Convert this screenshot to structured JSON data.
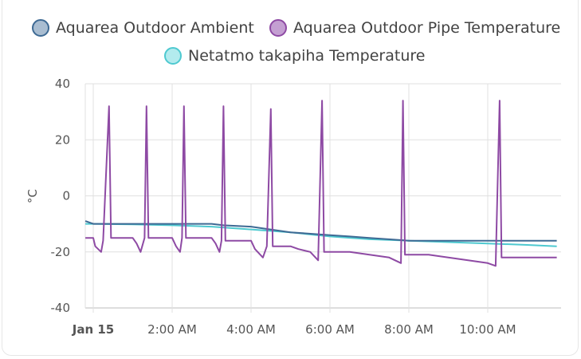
{
  "chart_data": {
    "type": "line",
    "ylabel": "°C",
    "ylim": [
      -40,
      40
    ],
    "yticks": [
      40,
      20,
      0,
      -20,
      -40
    ],
    "x_start_hour": 0,
    "x_end_hour": 11.75,
    "xticks": [
      {
        "label": "Jan 15",
        "hour": 0,
        "bold": true
      },
      {
        "label": "2:00 AM",
        "hour": 2,
        "bold": false
      },
      {
        "label": "4:00 AM",
        "hour": 4,
        "bold": false
      },
      {
        "label": "6:00 AM",
        "hour": 6,
        "bold": false
      },
      {
        "label": "8:00 AM",
        "hour": 8,
        "bold": false
      },
      {
        "label": "10:00 AM",
        "hour": 10,
        "bold": false
      }
    ],
    "series": [
      {
        "name": "Aquarea Outdoor Ambient",
        "color": "#3e6a94",
        "fill": "#a9bdd1",
        "points": [
          [
            -0.2,
            -9
          ],
          [
            0,
            -10
          ],
          [
            1,
            -10
          ],
          [
            2,
            -10
          ],
          [
            3,
            -10
          ],
          [
            3.3,
            -10.5
          ],
          [
            4,
            -11
          ],
          [
            5,
            -13
          ],
          [
            6,
            -14
          ],
          [
            6.5,
            -14.5
          ],
          [
            7,
            -15
          ],
          [
            8,
            -16
          ],
          [
            9,
            -16
          ],
          [
            10,
            -16
          ],
          [
            11,
            -16
          ],
          [
            11.75,
            -16
          ]
        ]
      },
      {
        "name": "Aquarea Outdoor Pipe Temperature",
        "color": "#8e4aa4",
        "fill": "#c49fd2",
        "points": [
          [
            -0.2,
            -15
          ],
          [
            0,
            -15
          ],
          [
            0.05,
            -18
          ],
          [
            0.2,
            -20
          ],
          [
            0.25,
            -16
          ],
          [
            0.4,
            32
          ],
          [
            0.45,
            -15
          ],
          [
            0.6,
            -15
          ],
          [
            1,
            -15
          ],
          [
            1.1,
            -17
          ],
          [
            1.2,
            -20
          ],
          [
            1.3,
            -15
          ],
          [
            1.35,
            32
          ],
          [
            1.4,
            -15
          ],
          [
            2,
            -15
          ],
          [
            2.1,
            -18
          ],
          [
            2.2,
            -20
          ],
          [
            2.25,
            -15
          ],
          [
            2.3,
            32
          ],
          [
            2.35,
            -15
          ],
          [
            3,
            -15
          ],
          [
            3.1,
            -17
          ],
          [
            3.2,
            -20
          ],
          [
            3.25,
            -16
          ],
          [
            3.3,
            32
          ],
          [
            3.35,
            -16
          ],
          [
            4,
            -16
          ],
          [
            4.1,
            -19
          ],
          [
            4.3,
            -22
          ],
          [
            4.4,
            -18
          ],
          [
            4.5,
            31
          ],
          [
            4.55,
            -18
          ],
          [
            5,
            -18
          ],
          [
            5.2,
            -19
          ],
          [
            5.5,
            -20
          ],
          [
            5.7,
            -23
          ],
          [
            5.8,
            34
          ],
          [
            5.85,
            -20
          ],
          [
            6.5,
            -20
          ],
          [
            7,
            -21
          ],
          [
            7.5,
            -22
          ],
          [
            7.8,
            -24
          ],
          [
            7.85,
            34
          ],
          [
            7.9,
            -21
          ],
          [
            8.5,
            -21
          ],
          [
            9,
            -22
          ],
          [
            9.5,
            -23
          ],
          [
            10,
            -24
          ],
          [
            10.2,
            -25
          ],
          [
            10.3,
            34
          ],
          [
            10.35,
            -22
          ],
          [
            11,
            -22
          ],
          [
            11.75,
            -22
          ]
        ]
      },
      {
        "name": "Netatmo takapiha Temperature",
        "color": "#4ec9d0",
        "fill": "#b3ebee",
        "points": [
          [
            -0.2,
            -10
          ],
          [
            0,
            -10
          ],
          [
            1,
            -10.2
          ],
          [
            2,
            -10.5
          ],
          [
            3,
            -11
          ],
          [
            4,
            -12
          ],
          [
            5,
            -13
          ],
          [
            6,
            -14.5
          ],
          [
            7,
            -15.5
          ],
          [
            8,
            -16
          ],
          [
            9,
            -16.5
          ],
          [
            10,
            -17
          ],
          [
            11,
            -17.5
          ],
          [
            11.75,
            -18
          ]
        ]
      }
    ]
  }
}
